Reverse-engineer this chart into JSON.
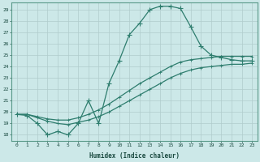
{
  "xlabel": "Humidex (Indice chaleur)",
  "ylabel": "",
  "xlim": [
    -0.5,
    23.5
  ],
  "ylim": [
    17.5,
    29.6
  ],
  "yticks": [
    18,
    19,
    20,
    21,
    22,
    23,
    24,
    25,
    26,
    27,
    28,
    29
  ],
  "xticks": [
    0,
    1,
    2,
    3,
    4,
    5,
    6,
    7,
    8,
    9,
    10,
    11,
    12,
    13,
    14,
    15,
    16,
    17,
    18,
    19,
    20,
    21,
    22,
    23
  ],
  "background_color": "#cce8e8",
  "grid_color": "#b0cccc",
  "line_color": "#2e7d6e",
  "line1_x": [
    0,
    1,
    2,
    3,
    4,
    5,
    6,
    7,
    8,
    9,
    10,
    11,
    12,
    13,
    14,
    15,
    16,
    17,
    18,
    19,
    20,
    21,
    22,
    23
  ],
  "line1_y": [
    19.8,
    19.7,
    19.0,
    18.0,
    18.3,
    18.0,
    19.0,
    21.0,
    19.0,
    22.5,
    24.5,
    26.8,
    27.8,
    29.0,
    29.3,
    29.3,
    29.1,
    27.5,
    25.8,
    25.0,
    24.8,
    24.6,
    24.5,
    24.5
  ],
  "line2_x": [
    0,
    1,
    2,
    3,
    4,
    5,
    6,
    7,
    8,
    9,
    10,
    11,
    12,
    13,
    14,
    15,
    16,
    17,
    18,
    19,
    20,
    21,
    22,
    23
  ],
  "line2_y": [
    19.8,
    19.8,
    19.6,
    19.4,
    19.3,
    19.3,
    19.5,
    19.8,
    20.2,
    20.7,
    21.3,
    21.9,
    22.5,
    23.0,
    23.5,
    24.0,
    24.4,
    24.6,
    24.7,
    24.8,
    24.9,
    24.9,
    24.9,
    24.9
  ],
  "line3_x": [
    0,
    1,
    2,
    3,
    4,
    5,
    6,
    7,
    8,
    9,
    10,
    11,
    12,
    13,
    14,
    15,
    16,
    17,
    18,
    19,
    20,
    21,
    22,
    23
  ],
  "line3_y": [
    19.8,
    19.8,
    19.5,
    19.2,
    19.0,
    18.9,
    19.1,
    19.3,
    19.6,
    20.0,
    20.5,
    21.0,
    21.5,
    22.0,
    22.5,
    23.0,
    23.4,
    23.7,
    23.9,
    24.0,
    24.1,
    24.2,
    24.2,
    24.3
  ],
  "marker_size": 2.5,
  "line_width": 0.9
}
